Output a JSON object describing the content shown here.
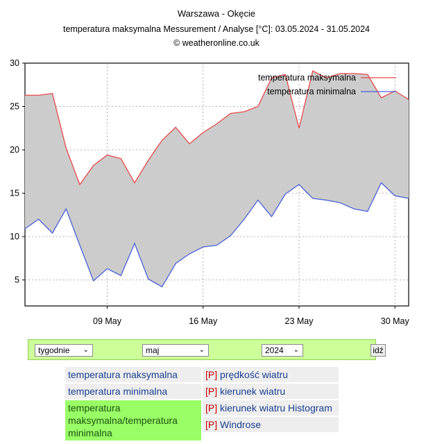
{
  "chart_data": {
    "type": "area",
    "title": "Warszawa - Okęcie",
    "subtitle": "temperatura maksymalna Messurement / Analyse [°C]: 03.05.2024 - 31.05.2024",
    "credit": "© weatheronline.co.uk",
    "xlabel": "",
    "ylabel": "",
    "xlim": [
      3,
      31
    ],
    "ylim": [
      2,
      30
    ],
    "yticks": [
      5,
      10,
      15,
      20,
      25,
      30
    ],
    "xticks": [
      {
        "day": 9,
        "label": "09 May"
      },
      {
        "day": 16,
        "label": "16 May"
      },
      {
        "day": 23,
        "label": "23 May"
      },
      {
        "day": 30,
        "label": "30 May"
      }
    ],
    "x": [
      3,
      4,
      5,
      6,
      7,
      8,
      9,
      10,
      11,
      12,
      13,
      14,
      15,
      16,
      17,
      18,
      19,
      20,
      21,
      22,
      23,
      24,
      25,
      26,
      27,
      28,
      29,
      30,
      31
    ],
    "series": [
      {
        "name": "temperatura maksymalna",
        "color": "#e8474a",
        "values": [
          26.3,
          26.3,
          26.5,
          20.2,
          16.0,
          18.2,
          19.4,
          19.0,
          16.2,
          18.8,
          21.1,
          22.6,
          20.7,
          22.0,
          23.0,
          24.2,
          24.4,
          25.0,
          28.3,
          28.7,
          22.5,
          29.1,
          28.3,
          28.8,
          28.8,
          28.7,
          26.0,
          26.8,
          25.8
        ]
      },
      {
        "name": "temperatura minimalna",
        "color": "#4a5fd8",
        "values": [
          10.9,
          12.0,
          10.4,
          13.2,
          9.0,
          4.9,
          6.3,
          5.5,
          9.2,
          5.1,
          4.2,
          6.9,
          8.0,
          8.8,
          9.0,
          10.1,
          12.0,
          14.2,
          12.3,
          14.9,
          16.0,
          14.4,
          14.2,
          13.9,
          13.2,
          12.9,
          16.2,
          14.7,
          14.4
        ]
      }
    ],
    "fill_color": "#cccccc",
    "grid": true,
    "legend_position": "top-right"
  },
  "controls": {
    "period": "tygodnie",
    "month": "maj",
    "year": "2024",
    "go_label": "idź",
    "arrow": "⌄"
  },
  "menu": {
    "left": [
      {
        "label": "temperatura maksymalna"
      },
      {
        "label": "temperatura minimalna"
      },
      {
        "label": "temperatura maksymalna/temperatura minimalna"
      }
    ],
    "right": [
      {
        "tag": "[P]",
        "label": "prędkość wiatru"
      },
      {
        "tag": "[P]",
        "label": "kierunek wiatru"
      },
      {
        "tag": "[P]",
        "label": "kierunek wiatru Histogram"
      },
      {
        "tag": "[P]",
        "label": "Windrose"
      }
    ]
  }
}
